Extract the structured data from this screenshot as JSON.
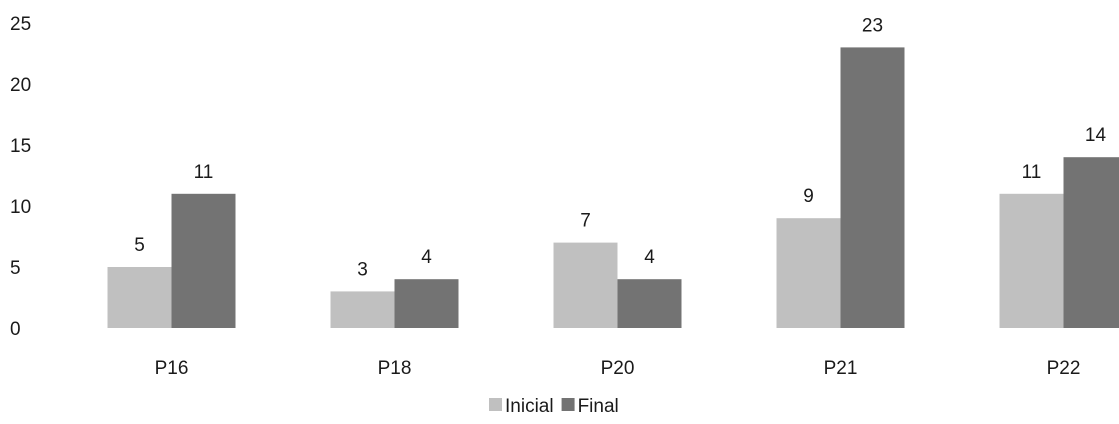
{
  "chart_data": {
    "type": "bar",
    "title": "",
    "xlabel": "",
    "ylabel": "",
    "categories": [
      "P16",
      "P18",
      "P20",
      "P21",
      "P22"
    ],
    "series": [
      {
        "name": "Inicial",
        "values": [
          5,
          3,
          7,
          9,
          11
        ],
        "color": "#c0c0c0"
      },
      {
        "name": "Final",
        "values": [
          11,
          4,
          4,
          23,
          14
        ],
        "color": "#737373"
      }
    ],
    "ylim": [
      0,
      25
    ],
    "yticks": [
      "0",
      "5",
      "10",
      "15",
      "20",
      "25"
    ],
    "grid": false,
    "legend": "bottom",
    "data_labels": true
  }
}
